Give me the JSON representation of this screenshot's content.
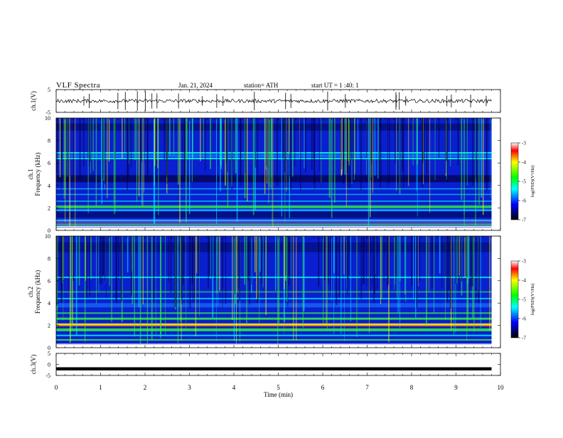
{
  "header": {
    "title": "VLF  Spectra",
    "date": "Jan. 21, 2024",
    "station": "station= ATH",
    "start": "start  UT  =   1  :40: 1"
  },
  "colors": {
    "spec_dark": "#000033",
    "spec_blue": "#0000ff",
    "spec_cyan": "#00ffff",
    "spec_green": "#33ff33",
    "spec_yellow": "#ffff00",
    "spec_red": "#ff0000",
    "spec_white": "#ffffff"
  },
  "chart_data": [
    {
      "type": "line",
      "panel": "ch1-waveform",
      "ylabel": "ch.1(V)",
      "ylim": [
        -5,
        5
      ],
      "yticks": [
        "5",
        "-5"
      ],
      "xlim": [
        0,
        10
      ],
      "baseline_v": 0
    },
    {
      "type": "heatmap",
      "panel": "ch1-spectrogram",
      "ylabel": "Frequency  (kHz)",
      "channel_label": "ch.1",
      "ylim": [
        0,
        10
      ],
      "yticks": [
        "10",
        "8",
        "6",
        "4",
        "2",
        "0"
      ],
      "xlim": [
        0,
        10
      ],
      "end_time_min": 9.8,
      "colorbar": {
        "label": "log(PSD)(V²/Hz)",
        "ticks": [
          "-3",
          "-4",
          "-5",
          "-6",
          "-7"
        ],
        "range": [
          -7,
          -3
        ]
      }
    },
    {
      "type": "heatmap",
      "panel": "ch2-spectrogram",
      "ylabel": "Frequency  (kHz)",
      "channel_label": "ch.2",
      "ylim": [
        0,
        10
      ],
      "yticks": [
        "10",
        "8",
        "6",
        "4",
        "2",
        "0"
      ],
      "xlim": [
        0,
        10
      ],
      "end_time_min": 9.8,
      "colorbar": {
        "label": "log(PSD)(V²/Hz)",
        "ticks": [
          "-3",
          "-4",
          "-5",
          "-6",
          "-7"
        ],
        "range": [
          -7,
          -3
        ]
      }
    },
    {
      "type": "line",
      "panel": "ch3-waveform",
      "ylabel": "ch.3(V)",
      "ylim": [
        -5,
        5
      ],
      "yticks": [
        "5",
        "0",
        "-5"
      ],
      "xlim": [
        0,
        10
      ],
      "baseline_v": -2
    }
  ],
  "xaxis": {
    "label": "Time  (min)",
    "ticks": [
      "0",
      "1",
      "2",
      "3",
      "4",
      "5",
      "6",
      "7",
      "8",
      "9",
      "10"
    ]
  }
}
